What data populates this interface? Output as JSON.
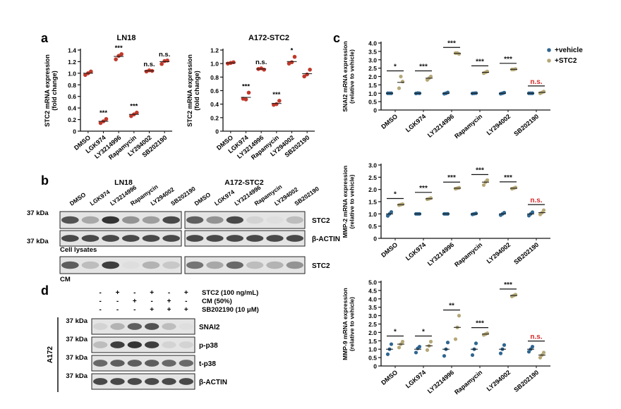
{
  "panels": {
    "a": "a",
    "b": "b",
    "c": "c",
    "d": "d"
  },
  "colors": {
    "lnRed": "#c0392b",
    "vehicle": "#2f6690",
    "stc2": "#b5a877",
    "ns": "#d62728",
    "ink": "#111111"
  },
  "chart_data": [
    {
      "id": "a-ln18",
      "type": "scatter",
      "title": "LN18",
      "ylabel": "STC2 mRNA expression (fold change)",
      "ylim": [
        0,
        1.4
      ],
      "yticks": [
        0,
        0.2,
        0.4,
        0.6,
        0.8,
        1.0,
        1.2,
        1.4
      ],
      "categories": [
        "DMSO",
        "LGK974",
        "LY3214996",
        "Rapamycin",
        "LY294002",
        "SB202190"
      ],
      "means": [
        1.0,
        0.17,
        1.29,
        0.29,
        1.04,
        1.2
      ],
      "points": [
        [
          0.97,
          1.03,
          1.0
        ],
        [
          0.14,
          0.21,
          0.17
        ],
        [
          1.24,
          1.33,
          1.3
        ],
        [
          0.26,
          0.32,
          0.29
        ],
        [
          1.03,
          1.04,
          1.05
        ],
        [
          1.16,
          1.22,
          1.21
        ]
      ],
      "significance": [
        "",
        "***",
        "***",
        "***",
        "n.s.",
        "n.s."
      ]
    },
    {
      "id": "a-a172",
      "type": "scatter",
      "title": "A172-STC2",
      "ylabel": "STC2 mRNA expression (fold change)",
      "ylim": [
        0,
        1.2
      ],
      "yticks": [
        0,
        0.2,
        0.4,
        0.6,
        0.8,
        1.0,
        1.2
      ],
      "categories": [
        "DMSO",
        "LGK974",
        "LY3214996",
        "Rapamycin",
        "LY294002",
        "SB202190"
      ],
      "means": [
        1.01,
        0.5,
        0.92,
        0.41,
        1.03,
        0.85
      ],
      "points": [
        [
          1.0,
          1.02,
          1.01
        ],
        [
          0.48,
          0.57,
          0.47
        ],
        [
          0.92,
          0.91,
          0.93
        ],
        [
          0.39,
          0.45,
          0.4
        ],
        [
          1.0,
          1.1,
          1.02
        ],
        [
          0.81,
          0.91,
          0.84
        ]
      ],
      "significance": [
        "",
        "***",
        "n.s.",
        "***",
        "*",
        ""
      ]
    },
    {
      "id": "c-snai2",
      "type": "scatter",
      "ylabel": "SNAI2 mRNA expression (relative to vehicle)",
      "ylim": [
        0,
        4.0
      ],
      "yticks": [
        0,
        0.5,
        1.0,
        1.5,
        2.0,
        2.5,
        3.0,
        3.5,
        4.0
      ],
      "categories": [
        "DMSO",
        "LGK974",
        "LY3214996",
        "Rapamycin",
        "LY294002",
        "SB202190"
      ],
      "series": [
        {
          "name": "+vehicle",
          "means": [
            1.0,
            1.0,
            1.0,
            1.0,
            1.0,
            1.0
          ],
          "points": [
            [
              1.0,
              1.0,
              1.0
            ],
            [
              0.99,
              1.0,
              1.01
            ],
            [
              0.97,
              1.05,
              1.0
            ],
            [
              0.99,
              1.01,
              1.0
            ],
            [
              0.97,
              1.04,
              1.0
            ],
            [
              1.0,
              1.0,
              1.0
            ]
          ]
        },
        {
          "name": "+STC2",
          "means": [
            1.65,
            1.9,
            3.38,
            2.25,
            2.43,
            1.05
          ],
          "points": [
            [
              1.3,
              1.7,
              2.0
            ],
            [
              1.8,
              2.0,
              1.9
            ],
            [
              3.4,
              3.35,
              3.4
            ],
            [
              2.2,
              2.3,
              2.25
            ],
            [
              2.42,
              2.45,
              2.42
            ],
            [
              1.0,
              1.1,
              1.05
            ]
          ]
        }
      ],
      "significance": [
        "*",
        "***",
        "***",
        "***",
        "***",
        "n.s."
      ]
    },
    {
      "id": "c-mmp2",
      "type": "scatter",
      "ylabel": "MMP-2 mRNA expression (relative to vehicle)",
      "ylim": [
        0,
        3.0
      ],
      "yticks": [
        0,
        0.5,
        1.0,
        1.5,
        2.0,
        2.5,
        3.0
      ],
      "categories": [
        "DMSO",
        "LGK974",
        "LY3214996",
        "Rapamycin",
        "LY294002",
        "SB202190"
      ],
      "series": [
        {
          "name": "+vehicle",
          "means": [
            1.0,
            1.0,
            1.0,
            1.0,
            1.0,
            1.0
          ],
          "points": [
            [
              0.92,
              1.08,
              1.0
            ],
            [
              1.0,
              1.0,
              1.0
            ],
            [
              1.0,
              1.0,
              1.0
            ],
            [
              0.98,
              1.02,
              1.0
            ],
            [
              0.95,
              1.05,
              1.0
            ],
            [
              0.93,
              1.07,
              1.0
            ]
          ]
        },
        {
          "name": "+STC2",
          "means": [
            1.38,
            1.62,
            2.05,
            2.3,
            2.05,
            1.05
          ],
          "points": [
            [
              1.36,
              1.4,
              1.38
            ],
            [
              1.6,
              1.65,
              1.62
            ],
            [
              2.03,
              2.07,
              2.05
            ],
            [
              2.18,
              2.38,
              2.3
            ],
            [
              2.03,
              2.08,
              2.05
            ],
            [
              0.98,
              1.15,
              1.05
            ]
          ]
        }
      ],
      "significance": [
        "*",
        "***",
        "***",
        "***",
        "***",
        "n.s."
      ]
    },
    {
      "id": "c-mmp9",
      "type": "scatter",
      "ylabel": "MMP-9 mRNA expression (relative to vehicle)",
      "ylim": [
        0,
        5.0
      ],
      "yticks": [
        0,
        0.5,
        1.0,
        1.5,
        2.0,
        2.5,
        3.0,
        3.5,
        4.0,
        4.5,
        5.0
      ],
      "categories": [
        "DMSO",
        "LGK974",
        "LY3214996",
        "Rapamycin",
        "LY294002",
        "SB202190"
      ],
      "series": [
        {
          "name": "+vehicle",
          "means": [
            1.0,
            1.0,
            1.0,
            1.0,
            1.0,
            1.0
          ],
          "points": [
            [
              0.7,
              1.3,
              1.0
            ],
            [
              0.8,
              1.15,
              1.05
            ],
            [
              0.6,
              1.4,
              1.0
            ],
            [
              0.65,
              1.35,
              1.0
            ],
            [
              0.75,
              1.25,
              1.0
            ],
            [
              0.85,
              1.15,
              1.0
            ]
          ]
        },
        {
          "name": "+STC2",
          "means": [
            1.3,
            1.2,
            2.3,
            1.9,
            4.2,
            0.65
          ],
          "points": [
            [
              1.1,
              1.45,
              1.3
            ],
            [
              0.95,
              1.45,
              1.2
            ],
            [
              1.6,
              3.0,
              2.3
            ],
            [
              1.85,
              1.95,
              1.9
            ],
            [
              4.15,
              4.25,
              4.2
            ],
            [
              0.5,
              0.8,
              0.65
            ]
          ]
        }
      ],
      "significance": [
        "*",
        "*",
        "**",
        "***",
        "***",
        "n.s."
      ]
    }
  ],
  "legend": [
    "+vehicle",
    "+STC2"
  ],
  "blot_b": {
    "left_title": "LN18",
    "right_title": "A172-STC2",
    "lanes": [
      "DMSO",
      "LGK974",
      "LY3214996",
      "Rapamycin",
      "LY294002",
      "SB202190"
    ],
    "kda_label": "37 kDa",
    "rows": [
      "STC2",
      "β-ACTIN",
      "STC2"
    ],
    "cell_lysates": "Cell lysates",
    "cm": "CM",
    "intensity_left": [
      [
        0.8,
        0.4,
        0.95,
        0.5,
        0.45,
        0.85
      ],
      [
        0.85,
        0.85,
        0.85,
        0.85,
        0.85,
        0.85
      ],
      [
        0.75,
        0.3,
        0.9,
        0.15,
        0.35,
        0.25
      ]
    ],
    "intensity_right": [
      [
        0.75,
        0.5,
        0.85,
        0.2,
        0.15,
        0.3
      ],
      [
        0.85,
        0.85,
        0.85,
        0.85,
        0.85,
        0.85
      ],
      [
        0.65,
        0.4,
        0.7,
        0.3,
        0.35,
        0.5
      ]
    ]
  },
  "blot_d": {
    "conditions": [
      {
        "label": "STC2 (100 ng/mL)",
        "signs": [
          "-",
          "+",
          "-",
          "+",
          "-",
          "+"
        ]
      },
      {
        "label": "CM (50%)",
        "signs": [
          "-",
          "-",
          "+",
          "-",
          "+",
          "-"
        ]
      },
      {
        "label": "SB202190 (10 μM)",
        "signs": [
          "-",
          "-",
          "-",
          "+",
          "+",
          "+"
        ]
      }
    ],
    "cell_line": "A172",
    "kda_label": "37 kDa",
    "rows": [
      "SNAI2",
      "p-p38",
      "t-p38",
      "β-ACTIN"
    ],
    "intensity": [
      [
        0.2,
        0.35,
        0.75,
        0.8,
        0.3,
        0.15
      ],
      [
        0.3,
        0.9,
        0.95,
        0.9,
        0.2,
        0.2
      ],
      [
        0.7,
        0.75,
        0.75,
        0.75,
        0.7,
        0.7
      ],
      [
        0.85,
        0.85,
        0.85,
        0.85,
        0.85,
        0.85
      ]
    ]
  }
}
